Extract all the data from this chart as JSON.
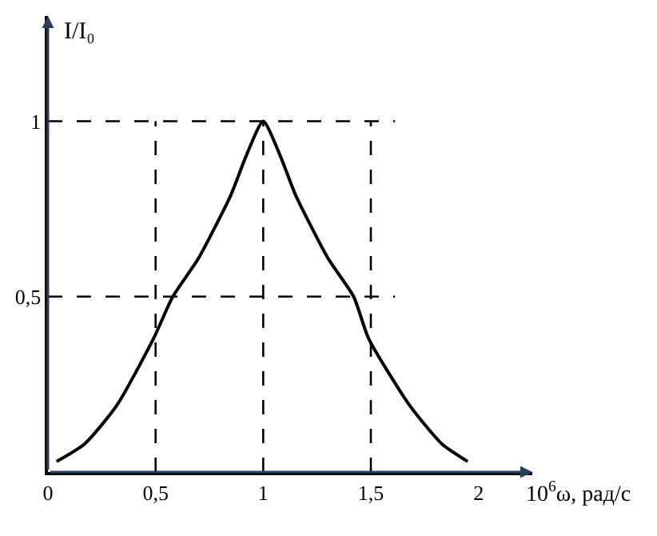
{
  "chart_data": {
    "type": "line",
    "ylabel": "I/I₀",
    "xlabel": "10$^{6}$ω, рад/с",
    "x": [
      0.04,
      0.17,
      0.32,
      0.49,
      0.58,
      0.7,
      0.85,
      0.92,
      1.0,
      1.08,
      1.15,
      1.3,
      1.42,
      1.49,
      1.68,
      1.83,
      1.95
    ],
    "series": [
      {
        "color": "#000000",
        "values": [
          0.03,
          0.08,
          0.19,
          0.38,
          0.5,
          0.61,
          0.79,
          0.9,
          1.0,
          0.9,
          0.79,
          0.61,
          0.5,
          0.38,
          0.19,
          0.08,
          0.03
        ]
      }
    ],
    "xlim": [
      0,
      2.25
    ],
    "ylim": [
      0,
      1.3
    ],
    "xticks": [
      0,
      {
        "value": 0.5,
        "label": "0,5"
      },
      1,
      {
        "value": 1.5,
        "label": "1,5"
      },
      2
    ],
    "yticks": [
      {
        "value": 0.5,
        "label": "0,5"
      },
      1
    ],
    "ref_lines": [
      {
        "axis": "x",
        "value": 0.5,
        "line_style": "dashed",
        "color": "#000000"
      },
      {
        "axis": "x",
        "value": 1,
        "line_style": "dashed",
        "color": "#000000"
      },
      {
        "axis": "x",
        "value": 1.5,
        "line_style": "dashed",
        "color": "#000000"
      },
      {
        "axis": "y",
        "value": 0.5,
        "line_style": "dashed",
        "color": "#000000"
      },
      {
        "axis": "y",
        "value": 1,
        "line_style": "dashed",
        "color": "#000000"
      }
    ],
    "marker": "none",
    "line_style": "solid"
  }
}
